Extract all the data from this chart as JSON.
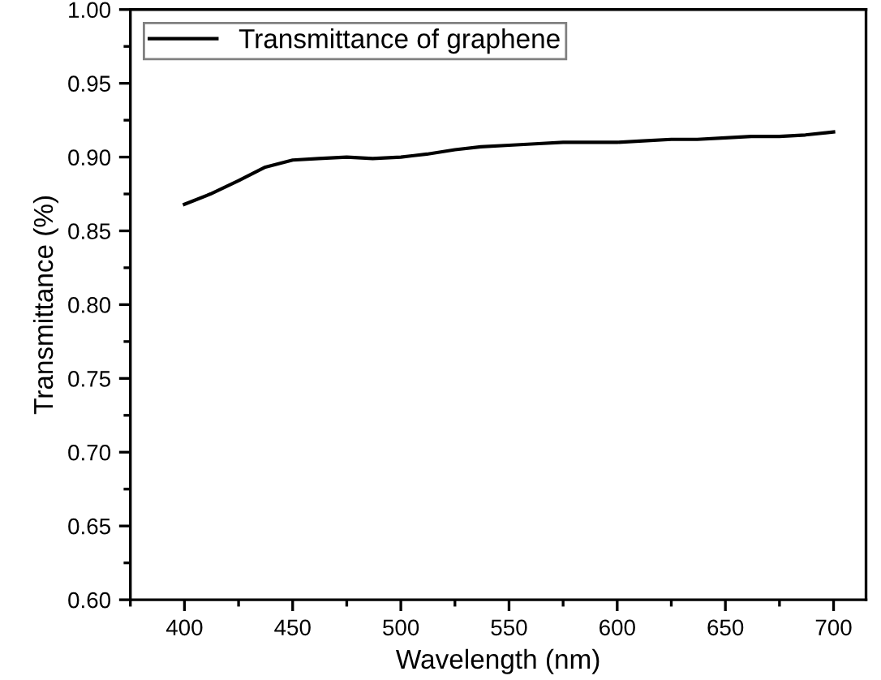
{
  "chart_data": {
    "type": "line",
    "xlabel": "Wavelength (nm)",
    "ylabel": "Transmittance (%)",
    "xlim": [
      375,
      715
    ],
    "xticks": [
      400,
      450,
      500,
      550,
      600,
      650,
      700
    ],
    "ylim": [
      0.6,
      1.0
    ],
    "yticks": [
      {
        "value": 0.6,
        "label": "0.60"
      },
      {
        "value": 0.65,
        "label": "0.65"
      },
      {
        "value": 0.7,
        "label": "0.70"
      },
      {
        "value": 0.75,
        "label": "0.75"
      },
      {
        "value": 0.8,
        "label": "0.80"
      },
      {
        "value": 0.85,
        "label": "0.85"
      },
      {
        "value": 0.9,
        "label": "0.90"
      },
      {
        "value": 0.95,
        "label": "0.95"
      },
      {
        "value": 1.0,
        "label": "1.00"
      }
    ],
    "x": [
      400,
      412,
      425,
      437,
      450,
      462,
      475,
      487,
      500,
      512,
      525,
      537,
      550,
      562,
      575,
      587,
      600,
      612,
      625,
      637,
      650,
      662,
      675,
      687,
      700
    ],
    "series": [
      {
        "name": "Transmittance of graphene",
        "color": "#000000",
        "values": [
          0.868,
          0.875,
          0.884,
          0.893,
          0.898,
          0.899,
          0.9,
          0.899,
          0.9,
          0.902,
          0.905,
          0.907,
          0.908,
          0.909,
          0.91,
          0.91,
          0.91,
          0.911,
          0.912,
          0.912,
          0.913,
          0.914,
          0.914,
          0.915,
          0.917
        ]
      }
    ],
    "legend": "top left",
    "grid": false,
    "marker": "none",
    "line_style": "solid"
  }
}
